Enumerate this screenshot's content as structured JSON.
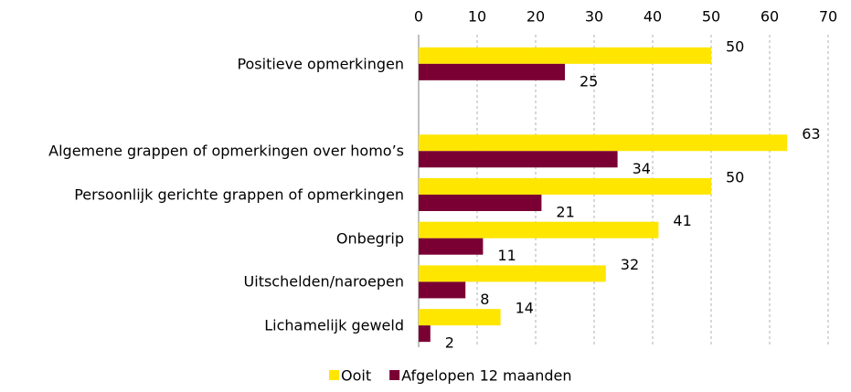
{
  "chart_data": {
    "type": "hbar",
    "categories": [
      "Positieve opmerkingen",
      null,
      "Algemene grappen of opmerkingen over homo’s",
      "Persoonlijk gerichte grappen of opmerkingen",
      "Onbegrip",
      "Uitschelden/naroepen",
      "Lichamelijk geweld"
    ],
    "series": [
      {
        "name": "Ooit",
        "color": "#ffe600",
        "values": [
          50,
          null,
          63,
          50,
          41,
          32,
          14
        ]
      },
      {
        "name": "Afgelopen 12 maanden",
        "color": "#7a0034",
        "values": [
          25,
          null,
          34,
          21,
          11,
          8,
          2
        ]
      }
    ],
    "xlim": [
      0,
      70
    ],
    "xticks": [
      0,
      10,
      20,
      30,
      40,
      50,
      60,
      70
    ],
    "grid": true,
    "legend": "bottom"
  }
}
